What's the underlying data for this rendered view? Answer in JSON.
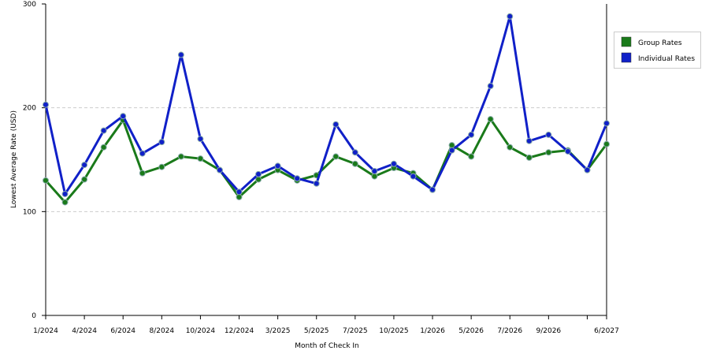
{
  "chart_data": {
    "type": "line",
    "x_label": "Month of Check In",
    "y_label": "Lowest Average Rate (USD)",
    "categories": [
      "1/2024",
      null,
      "4/2024",
      null,
      "6/2024",
      null,
      "8/2024",
      null,
      "10/2024",
      null,
      "12/2024",
      null,
      "3/2025",
      null,
      "5/2025",
      null,
      "7/2025",
      null,
      "10/2025",
      null,
      "1/2026",
      null,
      "5/2026",
      null,
      "7/2026",
      null,
      "9/2026",
      null,
      null,
      "6/2027"
    ],
    "series": [
      {
        "name": "Group Rates",
        "color": "#1a7a1a",
        "values": [
          130,
          109,
          131,
          162,
          188,
          137,
          143,
          153,
          151,
          140,
          114,
          131,
          140,
          130,
          135,
          153,
          146,
          134,
          142,
          137,
          121,
          164,
          153,
          189,
          162,
          152,
          157,
          159,
          140,
          165
        ]
      },
      {
        "name": "Individual Rates",
        "color": "#1020c8",
        "values": [
          203,
          117,
          145,
          178,
          192,
          156,
          167,
          251,
          170,
          140,
          119,
          136,
          144,
          132,
          127,
          184,
          157,
          139,
          146,
          134,
          121,
          159,
          174,
          221,
          288,
          168,
          174,
          158,
          140,
          185
        ]
      }
    ],
    "ylim": [
      0,
      300
    ],
    "yticks": [
      0,
      100,
      200,
      300
    ],
    "grid": true
  }
}
